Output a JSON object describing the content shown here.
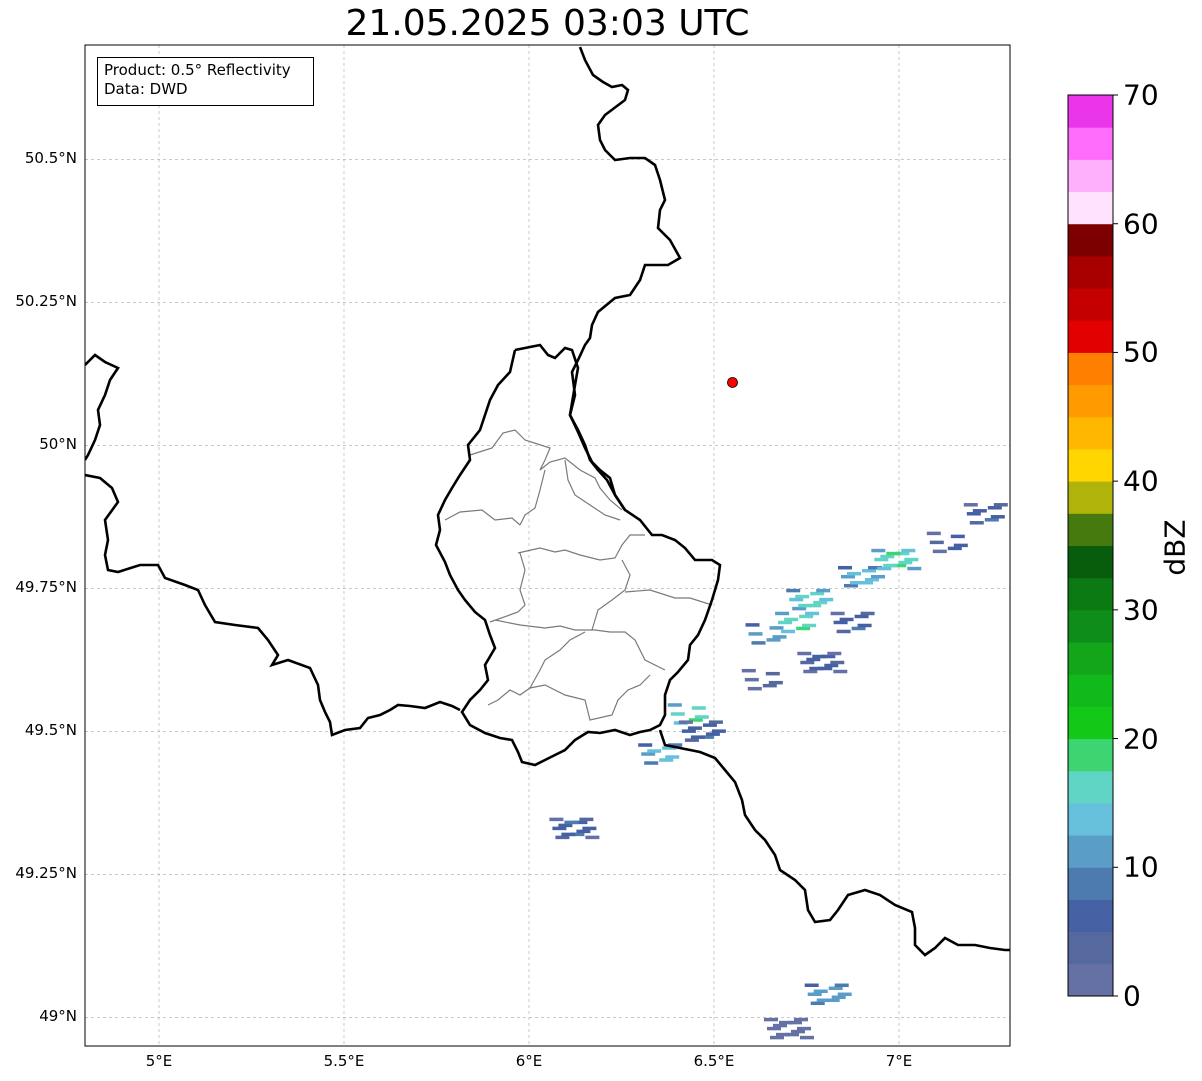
{
  "title": "21.05.2025 03:03 UTC",
  "info_box": {
    "line1": "Product: 0.5° Reflectivity",
    "line2": "Data: DWD"
  },
  "map": {
    "lon_range": [
      4.8,
      7.3
    ],
    "lat_range": [
      48.95,
      50.7
    ],
    "lat_ticks": [
      "50.5°N",
      "50.25°N",
      "50°N",
      "49.75°N",
      "49.5°N",
      "49.25°N",
      "49°N"
    ],
    "lon_ticks": [
      "5°E",
      "5.5°E",
      "6°E",
      "6.5°E",
      "7°E"
    ],
    "grid": true,
    "radar_site": {
      "lon": 6.55,
      "lat": 50.11,
      "color": "#ff0000"
    }
  },
  "colorbar": {
    "label": "dBZ",
    "ticks": [
      "0",
      "10",
      "20",
      "30",
      "40",
      "50",
      "60",
      "70"
    ],
    "colors": [
      "#6571a5",
      "#56699f",
      "#4661a3",
      "#4d7bb0",
      "#5a9dc7",
      "#66c0db",
      "#61d5c5",
      "#3cd572",
      "#14c818",
      "#12b91a",
      "#13a51a",
      "#0f8d1a",
      "#0b7a13",
      "#075d0c",
      "#467a0e",
      "#b0b30a",
      "#ffd600",
      "#ffb700",
      "#ff9a00",
      "#ff7f00",
      "#e30000",
      "#c50000",
      "#a80000",
      "#7d0000",
      "#ffe3fe",
      "#ffb0fd",
      "#ff6cfb",
      "#eb35eb"
    ]
  },
  "echoes": [
    {
      "lon": 6.44,
      "lat": 49.53,
      "dbz": 22
    },
    {
      "lon": 6.36,
      "lat": 49.46,
      "dbz": 18
    },
    {
      "lon": 6.47,
      "lat": 49.5,
      "dbz": 12
    },
    {
      "lon": 6.12,
      "lat": 49.33,
      "dbz": 12
    },
    {
      "lon": 6.65,
      "lat": 49.67,
      "dbz": 16
    },
    {
      "lon": 6.73,
      "lat": 49.69,
      "dbz": 22
    },
    {
      "lon": 6.76,
      "lat": 49.73,
      "dbz": 20
    },
    {
      "lon": 6.79,
      "lat": 49.62,
      "dbz": 10
    },
    {
      "lon": 6.64,
      "lat": 49.59,
      "dbz": 8
    },
    {
      "lon": 6.88,
      "lat": 49.69,
      "dbz": 12
    },
    {
      "lon": 6.9,
      "lat": 49.77,
      "dbz": 18
    },
    {
      "lon": 6.99,
      "lat": 49.8,
      "dbz": 22
    },
    {
      "lon": 7.14,
      "lat": 49.83,
      "dbz": 10
    },
    {
      "lon": 7.24,
      "lat": 49.88,
      "dbz": 12
    },
    {
      "lon": 6.81,
      "lat": 49.04,
      "dbz": 16
    },
    {
      "lon": 6.7,
      "lat": 48.98,
      "dbz": 6
    }
  ]
}
